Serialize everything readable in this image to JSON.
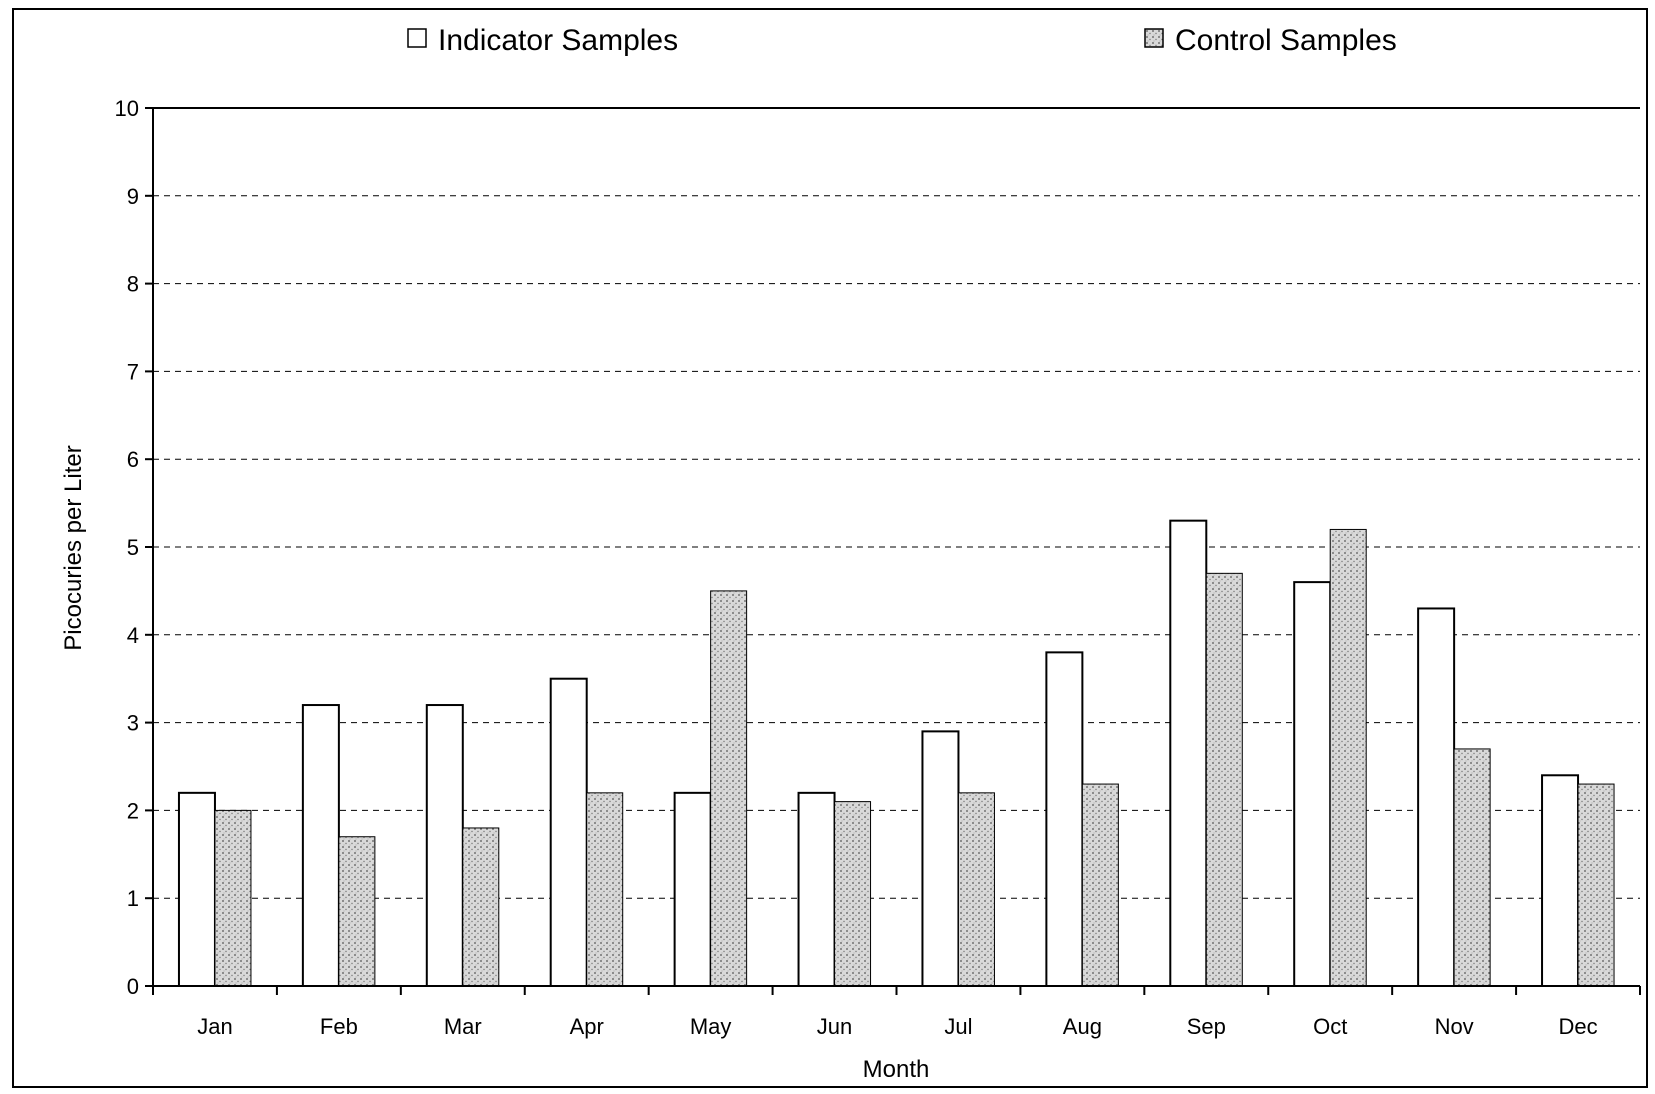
{
  "chart_data": {
    "type": "bar",
    "title": "",
    "xlabel": "Month",
    "ylabel": "Picocuries per Liter",
    "ylim": [
      0,
      10
    ],
    "yticks": [
      0,
      1,
      2,
      3,
      4,
      5,
      6,
      7,
      8,
      9,
      10
    ],
    "grid": "horizontal dashed",
    "legend_position": "top",
    "categories": [
      "Jan",
      "Feb",
      "Mar",
      "Apr",
      "May",
      "Jun",
      "Jul",
      "Aug",
      "Sep",
      "Oct",
      "Nov",
      "Dec"
    ],
    "series": [
      {
        "name": "Indicator Samples",
        "color": "#ffffff",
        "values": [
          2.2,
          3.2,
          3.2,
          3.5,
          2.2,
          2.2,
          2.9,
          3.8,
          5.3,
          4.6,
          4.3,
          2.4
        ]
      },
      {
        "name": "Control Samples",
        "color": "#c8c8c8",
        "values": [
          2.0,
          1.7,
          1.8,
          2.2,
          4.5,
          2.1,
          2.2,
          2.3,
          4.7,
          5.2,
          2.7,
          2.3
        ]
      }
    ]
  }
}
